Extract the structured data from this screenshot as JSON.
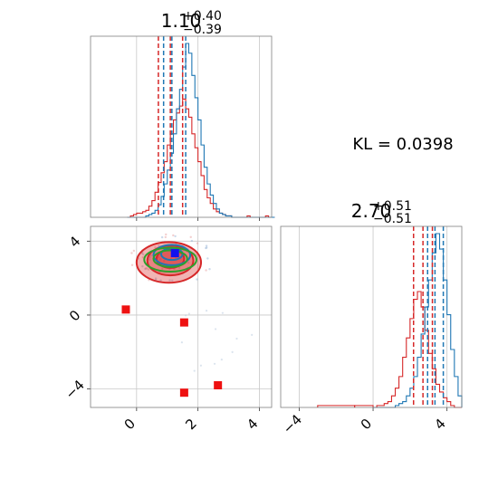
{
  "chart_data": {
    "type": "corner",
    "parameters": [
      {
        "title_value": "1.10",
        "title_plus": "+0.40",
        "title_minus": "−0.39",
        "range": [
          -1.5,
          4.4
        ]
      },
      {
        "title_value": "2.70",
        "title_plus": "+0.51",
        "title_minus": "−0.51",
        "range": [
          -5.0,
          4.8
        ]
      }
    ],
    "kl_text": "KL = 0.0398",
    "ticks": {
      "p1_values": [
        0,
        2,
        4
      ],
      "p1_labels": [
        "0",
        "2",
        "4"
      ],
      "p2_values": [
        -4,
        0,
        4
      ],
      "p2_labels": [
        "−4",
        "0",
        "4"
      ]
    },
    "series": [
      {
        "name": "",
        "color": "#d62728",
        "quantiles_p1": [
          0.71,
          1.1,
          1.5
        ],
        "quantiles_p2": [
          2.19,
          2.7,
          3.21
        ]
      },
      {
        "name": "",
        "color": "#1f77b4",
        "quantiles_p1": [
          0.88,
          1.15,
          1.6
        ],
        "quantiles_p2": [
          2.95,
          3.35,
          3.8
        ]
      }
    ],
    "hist_p1": {
      "bin_start": -0.3,
      "bin_width": 0.1,
      "red": [
        0,
        1,
        2,
        3,
        3,
        4,
        5,
        8,
        12,
        18,
        25,
        32,
        40,
        52,
        60,
        70,
        75,
        80,
        85,
        78,
        72,
        60,
        50,
        40,
        30,
        20,
        14,
        10,
        6,
        4,
        3,
        2,
        1,
        1,
        0,
        0,
        0,
        0,
        0,
        1,
        0,
        0,
        0,
        0,
        0,
        1,
        0,
        0
      ],
      "blue": [
        0,
        0,
        0,
        0,
        0,
        0,
        1,
        2,
        3,
        5,
        9,
        15,
        24,
        34,
        46,
        60,
        78,
        92,
        108,
        125,
        118,
        102,
        86,
        70,
        52,
        36,
        24,
        16,
        10,
        6,
        3,
        2,
        1,
        1,
        0,
        0,
        0,
        0,
        0,
        0,
        0,
        0,
        0,
        0,
        0,
        0,
        0,
        0
      ]
    },
    "hist_p2": {
      "bin_start": 0.0,
      "bin_width": 0.2,
      "red": [
        0,
        1,
        1,
        2,
        3,
        6,
        10,
        16,
        26,
        36,
        46,
        56,
        60,
        52,
        40,
        28,
        20,
        12,
        8,
        5,
        3,
        1,
        0,
        0
      ],
      "blue": [
        0,
        0,
        0,
        0,
        0,
        0,
        1,
        2,
        3,
        6,
        10,
        16,
        26,
        38,
        52,
        66,
        80,
        90,
        82,
        66,
        48,
        30,
        16,
        6
      ],
      "red_tail": [
        [
          -3.0,
          -1.0,
          1
        ],
        [
          -1.0,
          0.0,
          1
        ]
      ]
    },
    "scatter_points_red": [
      [
        -0.35,
        0.3
      ],
      [
        1.55,
        -0.4
      ],
      [
        1.55,
        -4.2
      ],
      [
        2.65,
        -3.8
      ]
    ],
    "scatter_point_blue": [
      1.25,
      3.35
    ],
    "contours": [
      {
        "color": "#d62728",
        "cx": 1.05,
        "cy": 2.85,
        "rx": 1.05,
        "ry": 1.1,
        "fill_opacity": 0.35
      },
      {
        "color": "#d62728",
        "cx": 1.1,
        "cy": 2.95,
        "rx": 0.75,
        "ry": 0.8,
        "fill_opacity": 0.35
      },
      {
        "color": "#d62728",
        "cx": 1.1,
        "cy": 3.05,
        "rx": 0.45,
        "ry": 0.5,
        "fill_opacity": 0.45
      },
      {
        "color": "#1f77b4",
        "cx": 1.15,
        "cy": 3.25,
        "rx": 0.6,
        "ry": 0.55,
        "fill_opacity": 0.0
      },
      {
        "color": "#1f77b4",
        "cx": 1.15,
        "cy": 3.3,
        "rx": 0.35,
        "ry": 0.32,
        "fill_opacity": 0.0
      },
      {
        "color": "#2ca02c",
        "cx": 1.1,
        "cy": 3.0,
        "rx": 0.85,
        "ry": 0.65,
        "fill_opacity": 0.0
      },
      {
        "color": "#2ca02c",
        "cx": 1.1,
        "cy": 3.05,
        "rx": 0.55,
        "ry": 0.45,
        "fill_opacity": 0.0
      }
    ],
    "grid": true
  }
}
